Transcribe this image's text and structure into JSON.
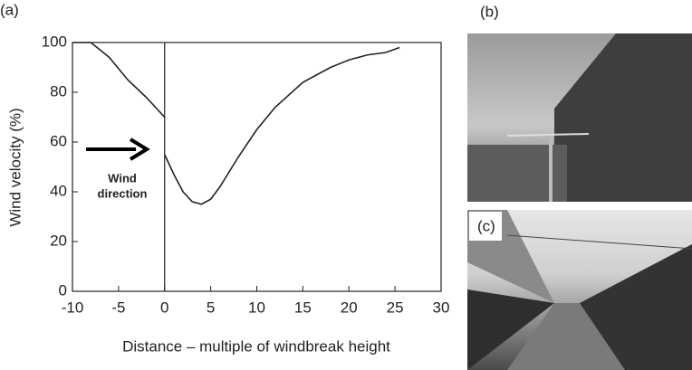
{
  "chart_data": {
    "type": "line",
    "panel_labels": [
      "(a)",
      "(b)",
      "(c)"
    ],
    "xlabel": "Distance – multiple of windbreak height",
    "ylabel": "Wind velocity (%)",
    "annotation": [
      "Wind",
      "direction"
    ],
    "x": [
      -10,
      -8,
      -6,
      -4,
      -2,
      -1,
      0,
      0,
      0,
      1,
      2,
      3,
      4,
      5,
      6,
      8,
      10,
      12,
      15,
      18,
      20,
      22,
      24,
      25.5
    ],
    "series": [
      {
        "color": "#222222",
        "values": [
          100,
          100,
          94,
          85,
          78,
          74,
          70,
          null,
          55,
          47,
          40,
          36,
          35,
          37,
          42,
          54,
          65,
          74,
          84,
          90,
          93,
          95,
          96,
          98
        ]
      }
    ],
    "xlim": [
      -10,
      30
    ],
    "xticks": [
      -10,
      -5,
      0,
      5,
      10,
      15,
      20,
      25,
      30
    ],
    "ylim": [
      0,
      100
    ],
    "yticks": [
      0,
      20,
      40,
      60,
      80,
      100
    ],
    "grid": false
  }
}
